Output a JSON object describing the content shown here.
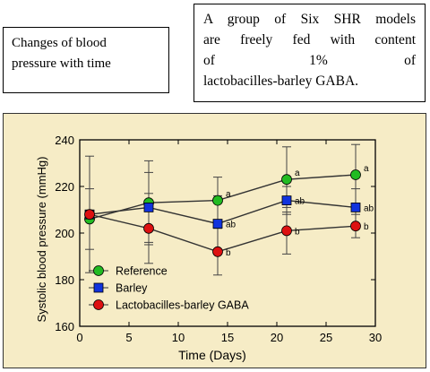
{
  "left_box": {
    "line1": "Changes of blood",
    "line2": "pressure with time"
  },
  "right_box": {
    "line1": "A group of Six SHR models",
    "line2": "are freely fed with content",
    "line3_a": "of",
    "line3_b": "1%",
    "line3_c": "of",
    "line4": "lactobacilles-barley GABA."
  },
  "colors": {
    "background": "#f6ecc6",
    "reference": "#22bb22",
    "barley": "#1133dd",
    "gaba": "#dd1111"
  },
  "chart_data": {
    "type": "line",
    "title": "",
    "xlabel": "Time (Days)",
    "ylabel": "Systolic blood pressure (mmHg)",
    "xlim": [
      0,
      30
    ],
    "ylim": [
      160,
      240
    ],
    "xticks": [
      0,
      5,
      10,
      15,
      20,
      25,
      30
    ],
    "yticks": [
      160,
      180,
      200,
      220,
      240
    ],
    "grid": false,
    "legend_position": "bottom-left",
    "series": [
      {
        "name": "Reference",
        "color": "#22bb22",
        "marker": "circle",
        "x": [
          1,
          7,
          14,
          21,
          28
        ],
        "y": [
          206,
          213,
          214,
          223,
          225
        ],
        "error": [
          13,
          18,
          10,
          14,
          13
        ],
        "annotations": [
          "",
          "",
          "a",
          "a",
          "a"
        ]
      },
      {
        "name": "Barley",
        "color": "#1133dd",
        "marker": "square",
        "x": [
          1,
          7,
          14,
          21,
          28
        ],
        "y": [
          208,
          211,
          204,
          214,
          211
        ],
        "error": [
          0,
          15,
          12,
          6,
          8
        ],
        "annotations": [
          "",
          "",
          "ab",
          "ab",
          "ab"
        ]
      },
      {
        "name": "Lactobacilles-barley GABA",
        "color": "#dd1111",
        "marker": "circle",
        "x": [
          1,
          7,
          14,
          21,
          28
        ],
        "y": [
          208,
          202,
          192,
          201,
          203
        ],
        "error": [
          25,
          15,
          10,
          10,
          5
        ],
        "annotations": [
          "",
          "",
          "b",
          "b",
          "b"
        ]
      }
    ]
  }
}
